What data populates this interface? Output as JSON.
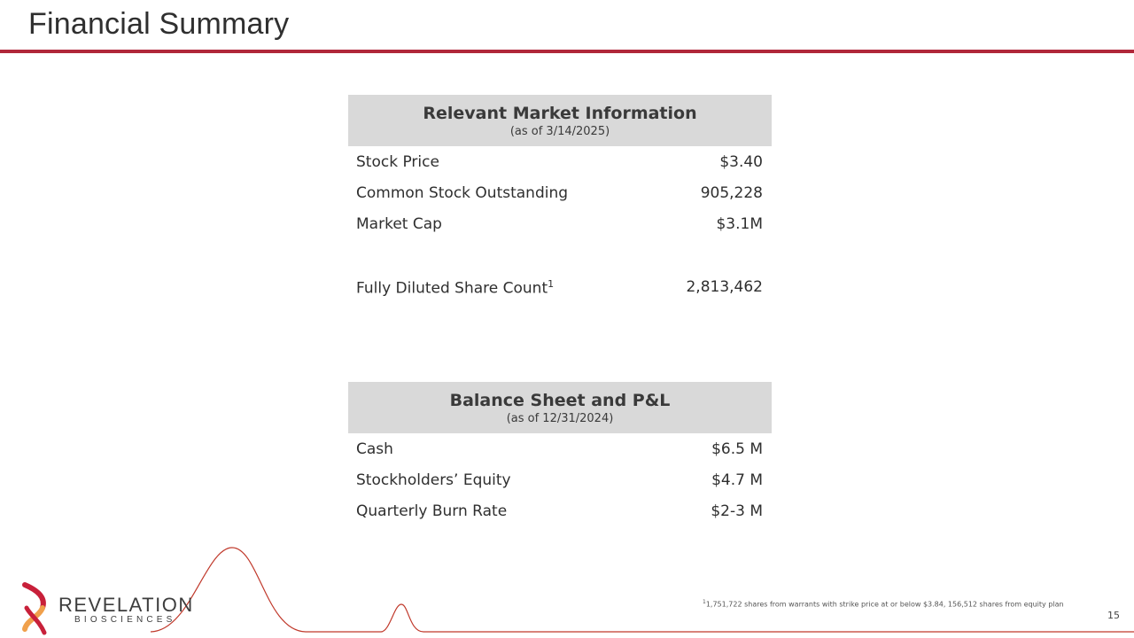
{
  "title": "Financial Summary",
  "market": {
    "heading": "Relevant Market Information",
    "as_of": "(as of 3/14/2025)",
    "rows": [
      {
        "label": "Stock Price",
        "value": "$3.40"
      },
      {
        "label": "Common Stock Outstanding",
        "value": "905,228"
      },
      {
        "label": "Market Cap",
        "value": "$3.1M"
      }
    ],
    "diluted": {
      "label": "Fully Diluted Share Count",
      "sup": "1",
      "value": "2,813,462"
    }
  },
  "balance": {
    "heading": "Balance Sheet and P&L",
    "as_of": "(as of 12/31/2024)",
    "rows": [
      {
        "label": "Cash",
        "value": "$6.5 M"
      },
      {
        "label": "Stockholders’ Equity",
        "value": "$4.7 M"
      },
      {
        "label": "Quarterly Burn Rate",
        "value": "$2-3 M"
      }
    ]
  },
  "footnote": {
    "marker": "1",
    "text": "1,751,722 shares from warrants with strike price at or below $3.84, 156,512 shares from equity plan"
  },
  "page_number": "15",
  "logo": {
    "name": "REVELATION",
    "sub": "BIOSCIENCES"
  },
  "colors": {
    "accent": "#b0273a",
    "header_fill": "#d9d9d9",
    "logo_orange": "#f0a04b",
    "logo_red": "#c8203a"
  }
}
